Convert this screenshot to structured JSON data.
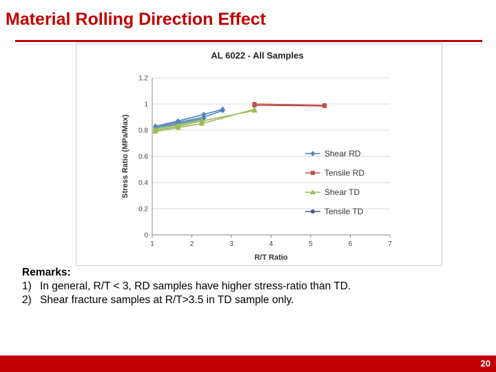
{
  "slide": {
    "title": "Material Rolling Direction Effect",
    "page_number": "20",
    "accent_color": "#c00000"
  },
  "remarks": {
    "heading": "Remarks:",
    "items": [
      {
        "num": "1)",
        "text": "In general, R/T < 3, RD samples have higher stress-ratio than TD."
      },
      {
        "num": "2)",
        "text": "Shear fracture samples at R/T>3.5 in TD sample only."
      }
    ]
  },
  "chart_data": {
    "type": "line",
    "title": "AL 6022 - All Samples",
    "xlabel": "R/T Ratio",
    "ylabel": "Stress Ratio (MPa/Max)",
    "xlim": [
      1,
      7
    ],
    "ylim": [
      0,
      1.2
    ],
    "xticks": [
      "1",
      "2",
      "3",
      "4",
      "5",
      "6",
      "7"
    ],
    "yticks": [
      "0",
      "0.2",
      "0.4",
      "0.6",
      "0.8",
      "1",
      "1.2"
    ],
    "grid": true,
    "legend_position": "right",
    "series": [
      {
        "name": "Shear RD",
        "color": "#4f81bd",
        "marker": "diamond",
        "lines": [
          {
            "x": [
              1.08,
              1.65,
              2.3,
              2.78
            ],
            "y": [
              0.83,
              0.87,
              0.92,
              0.96
            ]
          },
          {
            "x": [
              1.08,
              1.65,
              2.3,
              2.78
            ],
            "y": [
              0.82,
              0.86,
              0.9,
              0.95
            ]
          },
          {
            "x": [
              1.08,
              1.65,
              2.3
            ],
            "y": [
              0.81,
              0.85,
              0.89
            ]
          }
        ]
      },
      {
        "name": "Tensile RD",
        "color": "#c0504d",
        "marker": "square",
        "lines": [
          {
            "x": [
              3.58,
              5.35
            ],
            "y": [
              1.0,
              0.99
            ]
          },
          {
            "x": [
              3.58,
              5.35
            ],
            "y": [
              0.99,
              0.985
            ]
          }
        ]
      },
      {
        "name": "Shear TD",
        "color": "#9bbb59",
        "marker": "triangle",
        "lines": [
          {
            "x": [
              1.08,
              1.65,
              2.25,
              3.58
            ],
            "y": [
              0.79,
              0.82,
              0.85,
              0.96
            ]
          },
          {
            "x": [
              1.08,
              1.65,
              2.25,
              3.58
            ],
            "y": [
              0.8,
              0.83,
              0.87,
              0.95
            ]
          },
          {
            "x": [
              1.08,
              1.65,
              2.25
            ],
            "y": [
              0.81,
              0.84,
              0.88
            ]
          }
        ]
      },
      {
        "name": "Tensile TD",
        "color": "#4a5a8c",
        "marker": "dot",
        "lines": []
      }
    ]
  }
}
